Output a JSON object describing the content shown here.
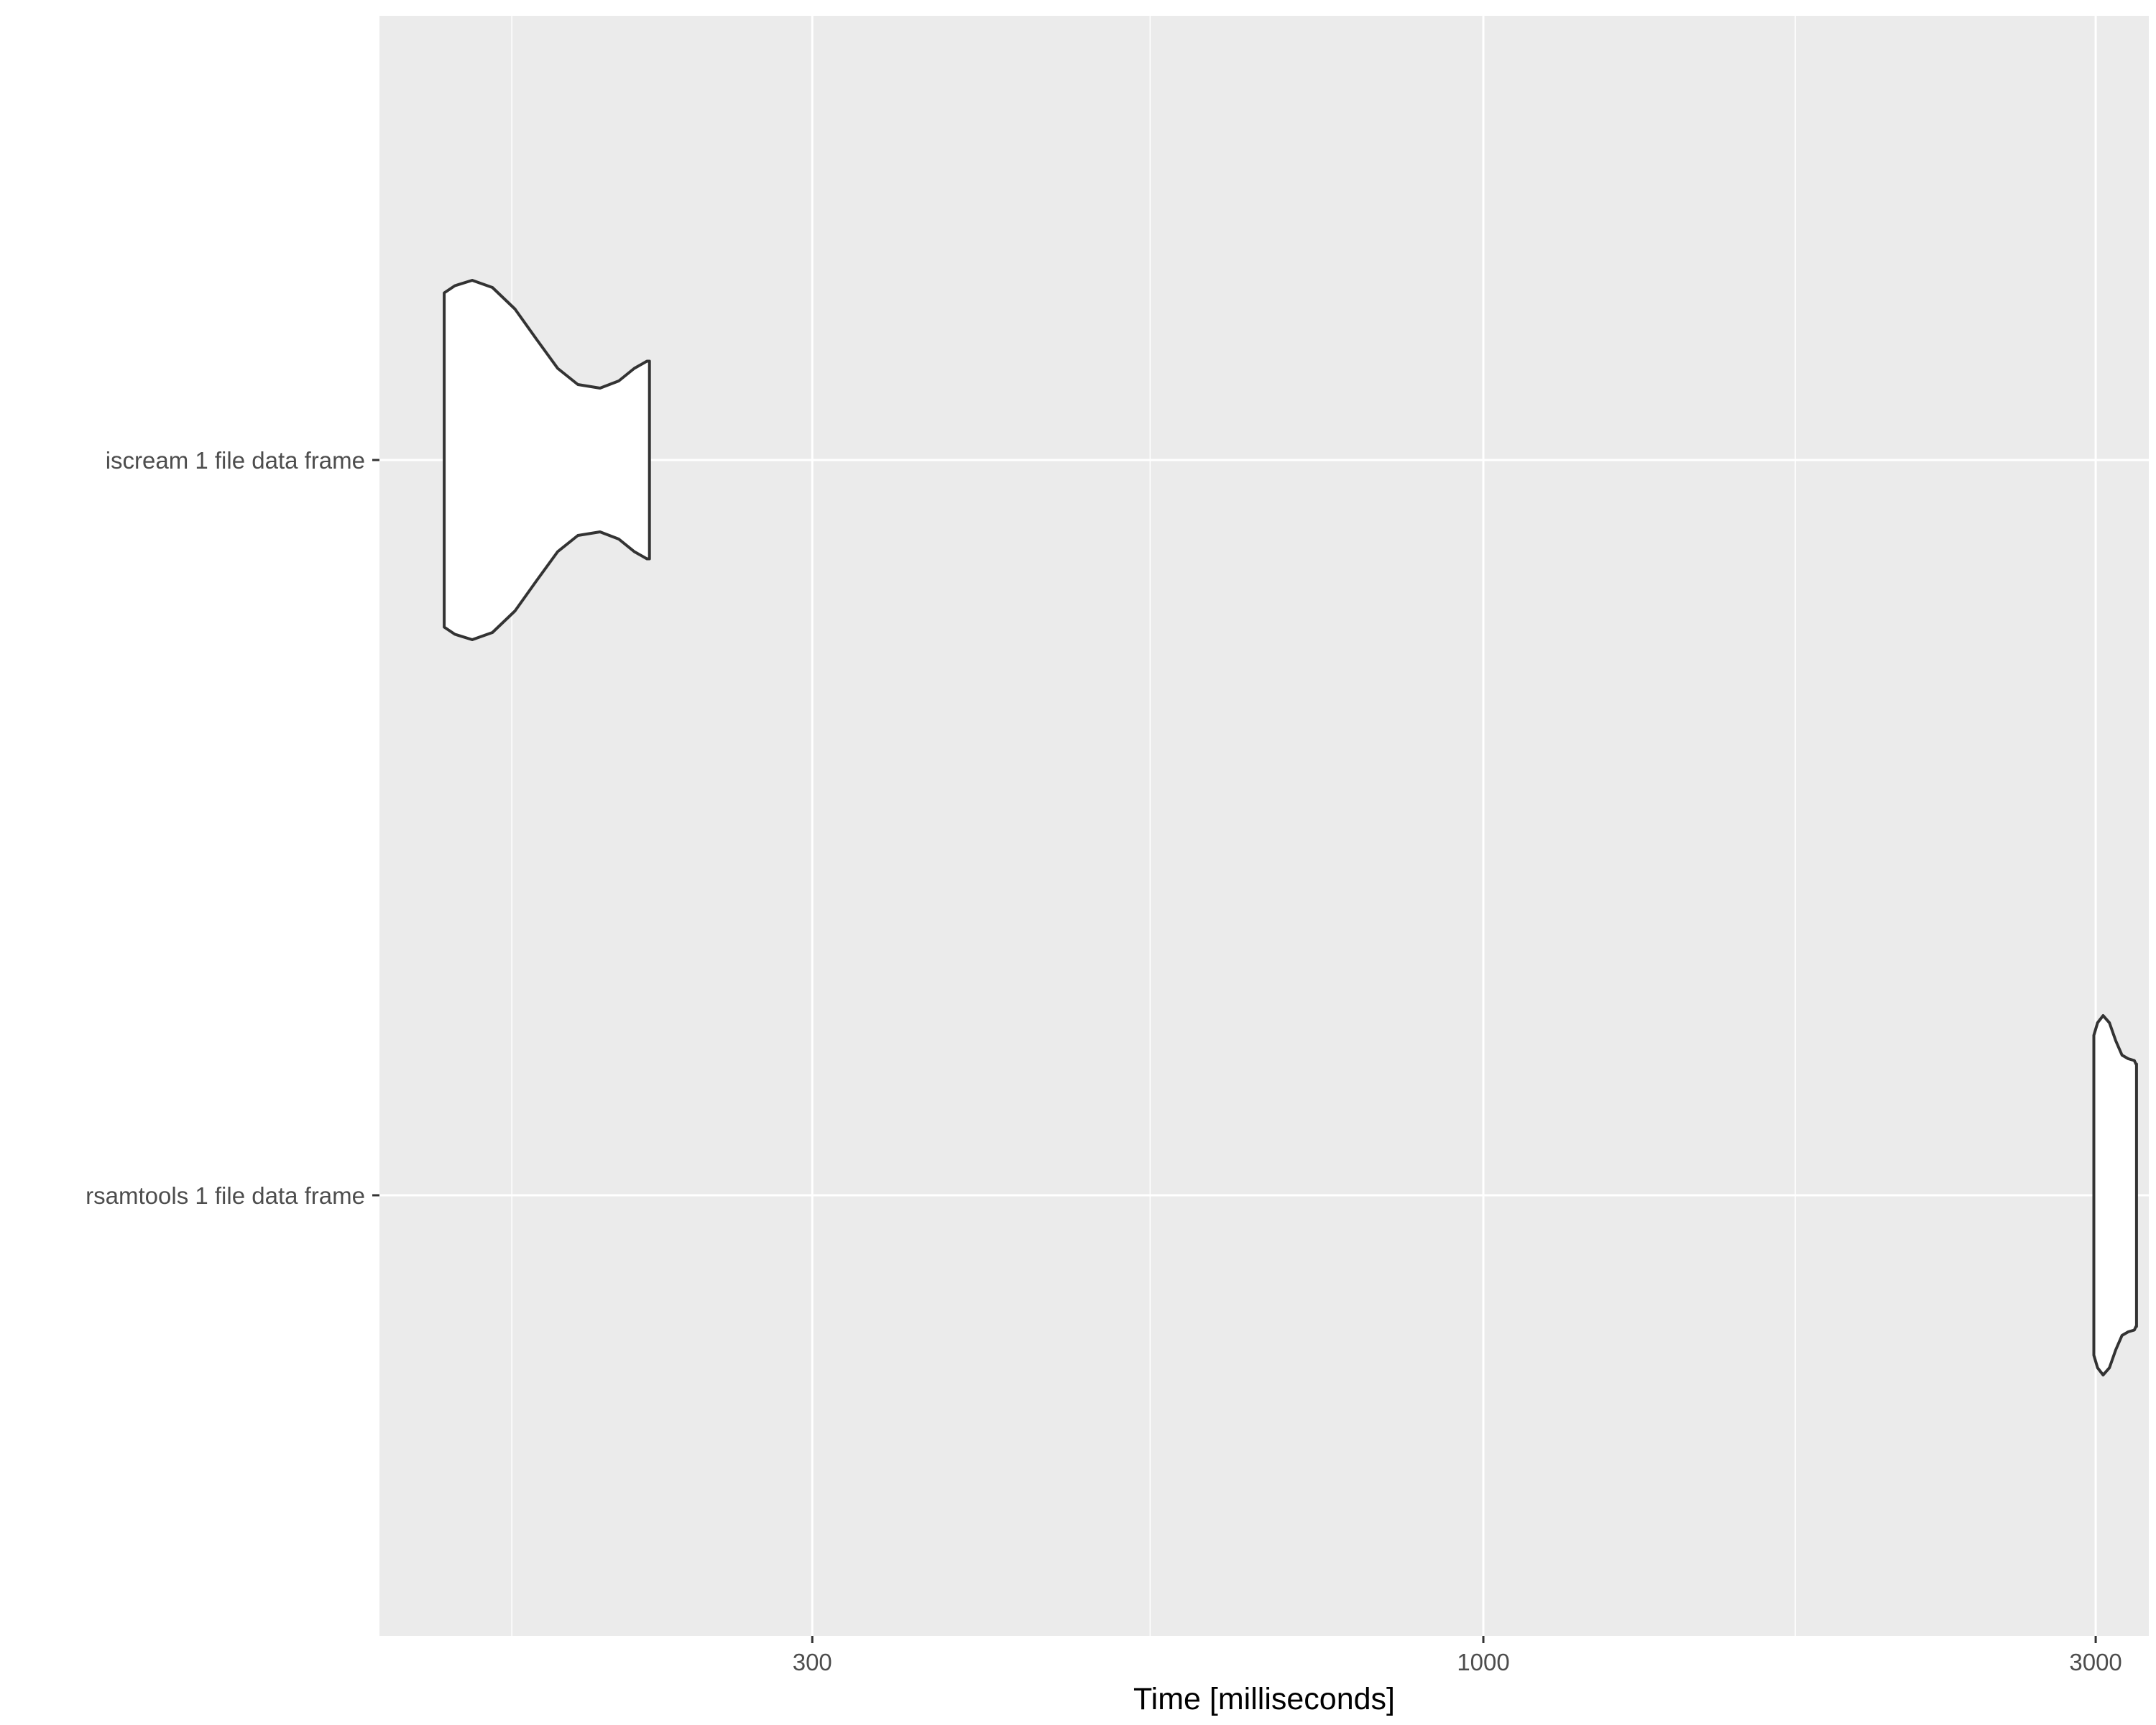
{
  "chart_data": {
    "type": "violin",
    "orientation": "horizontal",
    "title": "",
    "xlabel": "Time [milliseconds]",
    "ylabel": "",
    "x_scale": "log10",
    "xlim": [
      138,
      3300
    ],
    "x_ticks": [
      {
        "value": 300,
        "label": "300"
      },
      {
        "value": 1000,
        "label": "1000"
      },
      {
        "value": 3000,
        "label": "3000"
      }
    ],
    "x_minor_ticks": [
      175,
      550,
      1750
    ],
    "categories": [
      "iscream 1 file data frame",
      "rsamtools 1 file data frame"
    ],
    "grid": true,
    "legend": "none",
    "colors": {
      "panel_background": "#ebebeb",
      "grid": "#ffffff",
      "violin_fill": "#ffffff",
      "violin_outline": "#333333",
      "tick_label": "#4d4d4d",
      "axis_title": "#000000"
    },
    "violins": [
      {
        "category": "iscream 1 file data frame",
        "profile": [
          {
            "time": 155,
            "relative_width": 0.93
          },
          {
            "time": 158,
            "relative_width": 0.97
          },
          {
            "time": 163,
            "relative_width": 1.0
          },
          {
            "time": 169,
            "relative_width": 0.96
          },
          {
            "time": 176,
            "relative_width": 0.84
          },
          {
            "time": 183,
            "relative_width": 0.67
          },
          {
            "time": 190,
            "relative_width": 0.51
          },
          {
            "time": 197,
            "relative_width": 0.42
          },
          {
            "time": 205,
            "relative_width": 0.4
          },
          {
            "time": 212,
            "relative_width": 0.44
          },
          {
            "time": 218,
            "relative_width": 0.51
          },
          {
            "time": 223,
            "relative_width": 0.55
          },
          {
            "time": 224,
            "relative_width": 0.55
          }
        ]
      },
      {
        "category": "rsamtools 1 file data frame",
        "profile": [
          {
            "time": 2990,
            "relative_width": 0.89
          },
          {
            "time": 3010,
            "relative_width": 0.96
          },
          {
            "time": 3040,
            "relative_width": 1.0
          },
          {
            "time": 3075,
            "relative_width": 0.96
          },
          {
            "time": 3110,
            "relative_width": 0.86
          },
          {
            "time": 3145,
            "relative_width": 0.78
          },
          {
            "time": 3180,
            "relative_width": 0.76
          },
          {
            "time": 3215,
            "relative_width": 0.75
          },
          {
            "time": 3225,
            "relative_width": 0.73
          },
          {
            "time": 3228,
            "relative_width": 0.73
          }
        ]
      }
    ]
  }
}
